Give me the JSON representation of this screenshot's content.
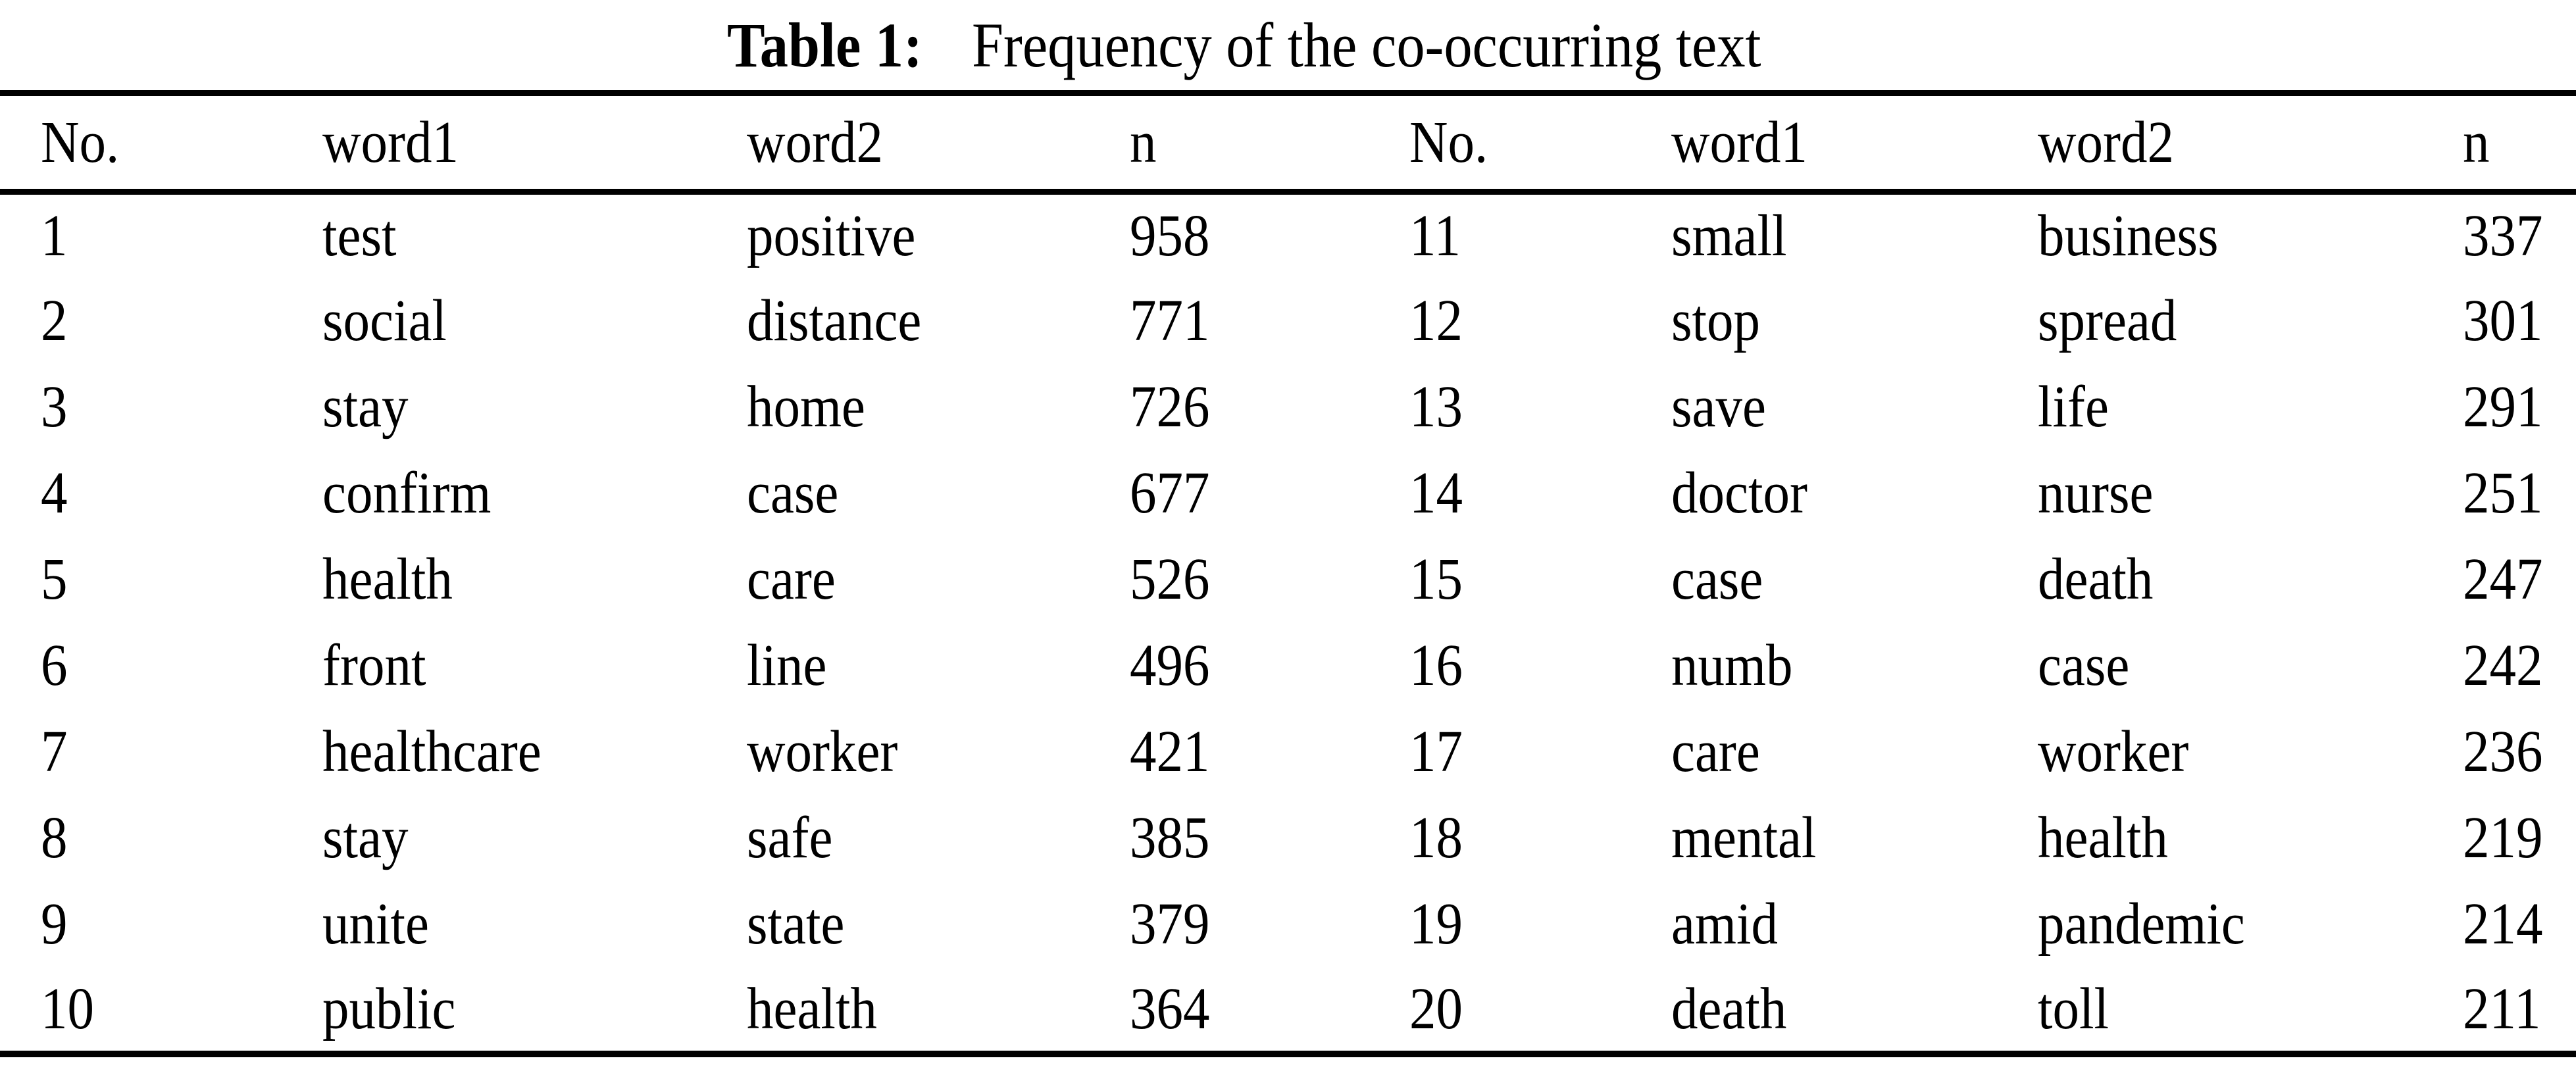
{
  "caption": {
    "label": "Table 1:",
    "text": "Frequency of the co-occurring text"
  },
  "table": {
    "columns": [
      "No.",
      "word1",
      "word2",
      "n"
    ],
    "rows": [
      {
        "left": {
          "no": "1",
          "word1": "test",
          "word2": "positive",
          "n": "958"
        },
        "right": {
          "no": "11",
          "word1": "small",
          "word2": "business",
          "n": "337"
        }
      },
      {
        "left": {
          "no": "2",
          "word1": "social",
          "word2": "distance",
          "n": "771"
        },
        "right": {
          "no": "12",
          "word1": "stop",
          "word2": "spread",
          "n": "301"
        }
      },
      {
        "left": {
          "no": "3",
          "word1": "stay",
          "word2": "home",
          "n": "726"
        },
        "right": {
          "no": "13",
          "word1": "save",
          "word2": "life",
          "n": "291"
        }
      },
      {
        "left": {
          "no": "4",
          "word1": "confirm",
          "word2": "case",
          "n": "677"
        },
        "right": {
          "no": "14",
          "word1": "doctor",
          "word2": "nurse",
          "n": "251"
        }
      },
      {
        "left": {
          "no": "5",
          "word1": "health",
          "word2": "care",
          "n": "526"
        },
        "right": {
          "no": "15",
          "word1": "case",
          "word2": "death",
          "n": "247"
        }
      },
      {
        "left": {
          "no": "6",
          "word1": "front",
          "word2": "line",
          "n": "496"
        },
        "right": {
          "no": "16",
          "word1": "numb",
          "word2": "case",
          "n": "242"
        }
      },
      {
        "left": {
          "no": "7",
          "word1": "healthcare",
          "word2": "worker",
          "n": "421"
        },
        "right": {
          "no": "17",
          "word1": "care",
          "word2": "worker",
          "n": "236"
        }
      },
      {
        "left": {
          "no": "8",
          "word1": "stay",
          "word2": "safe",
          "n": "385"
        },
        "right": {
          "no": "18",
          "word1": "mental",
          "word2": "health",
          "n": "219"
        }
      },
      {
        "left": {
          "no": "9",
          "word1": "unite",
          "word2": "state",
          "n": "379"
        },
        "right": {
          "no": "19",
          "word1": "amid",
          "word2": "pandemic",
          "n": "214"
        }
      },
      {
        "left": {
          "no": "10",
          "word1": "public",
          "word2": "health",
          "n": "364"
        },
        "right": {
          "no": "20",
          "word1": "death",
          "word2": "toll",
          "n": "211"
        }
      }
    ]
  },
  "colors": {
    "text": "#000000",
    "background": "#ffffff",
    "rule": "#000000"
  }
}
